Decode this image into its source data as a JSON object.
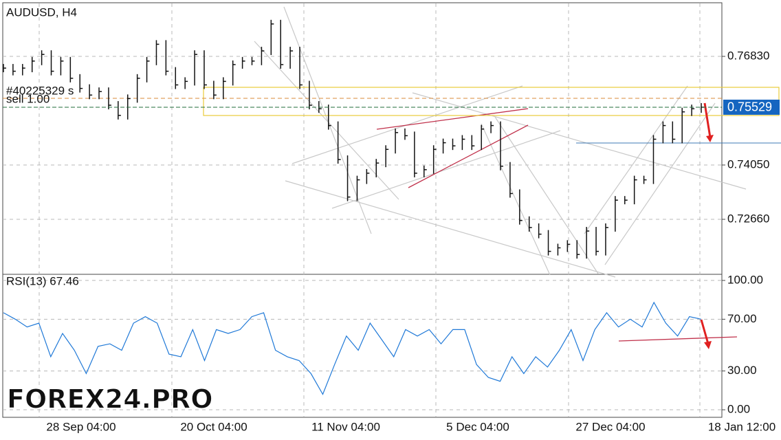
{
  "chart_data": [
    {
      "type": "bars",
      "title": "AUDUSD, H4",
      "annotations": [
        "#40225329 s",
        "sell 1.00"
      ],
      "last_price": 0.75529,
      "color": "#111111",
      "series": [
        {
          "name": "AUDUSD",
          "color": "#111111",
          "values": [
            0.7653,
            0.7645,
            0.7653,
            0.7671,
            0.7688,
            0.7645,
            0.7671,
            0.7627,
            0.7601,
            0.7584,
            0.7593,
            0.7558,
            0.7532,
            0.7575,
            0.7627,
            0.7671,
            0.7714,
            0.7645,
            0.761,
            0.7619,
            0.7688,
            0.761,
            0.7584,
            0.7619,
            0.7662,
            0.7671,
            0.7671,
            0.7697,
            0.7766,
            0.7662,
            0.7697,
            0.761,
            0.7558,
            0.7549,
            0.7506,
            0.7419,
            0.7323,
            0.7367,
            0.7384,
            0.741,
            0.7445,
            0.7488,
            0.748,
            0.7384,
            0.7393,
            0.7445,
            0.7462,
            0.7454,
            0.7471,
            0.7454,
            0.7497,
            0.7506,
            0.7402,
            0.7332,
            0.7263,
            0.7245,
            0.7228,
            0.7184,
            0.7193,
            0.7202,
            0.7176,
            0.7236,
            0.7184,
            0.7245,
            0.7315,
            0.7315,
            0.7367,
            0.7367,
            0.7471,
            0.7506,
            0.7471,
            0.7541,
            0.7549,
            0.75529
          ]
        }
      ],
      "ylim": [
        0.7127,
        0.78185
      ],
      "yticks": [
        {
          "value": 0.7266,
          "label": "0.72660"
        },
        {
          "value": 0.7405,
          "label": "0.74050"
        },
        {
          "value": 0.7683,
          "label": "0.76830"
        }
      ]
    },
    {
      "type": "line",
      "title": "RSI(13) 67.46",
      "series": [
        {
          "name": "RSI(13)",
          "color": "#1e78d7",
          "values": [
            75,
            70,
            64,
            67,
            41,
            59,
            46,
            28,
            49,
            51,
            46,
            67,
            72,
            67,
            43,
            41,
            62,
            38,
            62,
            59,
            62,
            72,
            75,
            46,
            41,
            38,
            28,
            12,
            35,
            57,
            46,
            67,
            54,
            41,
            62,
            57,
            62,
            51,
            62,
            62,
            35,
            25,
            22,
            41,
            28,
            41,
            33,
            46,
            62,
            38,
            62,
            75,
            64,
            70,
            64,
            83,
            67,
            57,
            72,
            70
          ]
        }
      ],
      "ylim": [
        -5.3,
        104.2
      ],
      "yticks": [
        {
          "value": 0,
          "label": "0.00"
        },
        {
          "value": 30,
          "label": "30.00"
        },
        {
          "value": 70,
          "label": "70.00"
        },
        {
          "value": 100,
          "label": "100.00"
        }
      ],
      "xtick_labels": [
        "28 Sep 04:00",
        "20 Oct 04:00",
        "11 Nov 04:00",
        "5 Dec 04:00",
        "27 Dec 04:00",
        "18 Jan 12:00"
      ]
    }
  ],
  "watermark": "FOREX24.PRO"
}
